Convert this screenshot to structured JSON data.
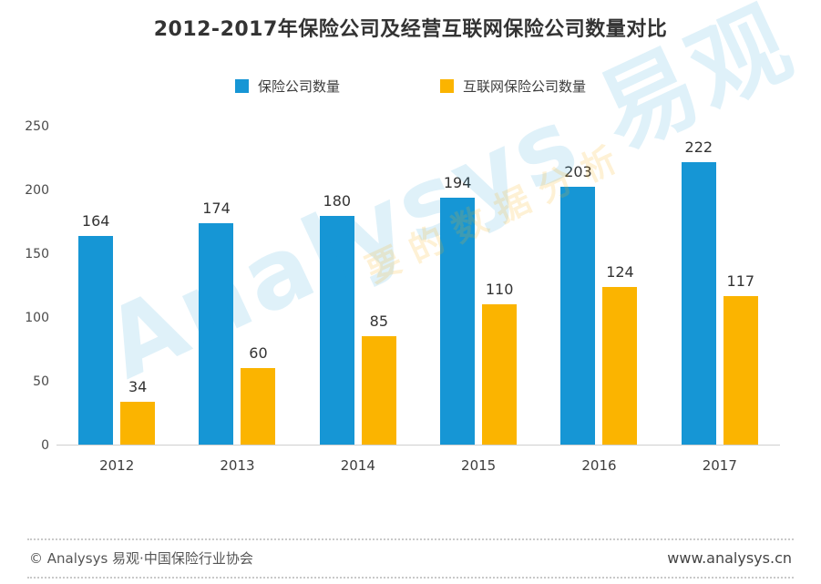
{
  "title": "2012-2017年保险公司及经营互联网保险公司数量对比",
  "legend": [
    {
      "label": "保险公司数量",
      "color": "#1696D5"
    },
    {
      "label": "互联网保险公司数量",
      "color": "#FBB400"
    }
  ],
  "chart_data": {
    "type": "bar",
    "title": "2012-2017年保险公司及经营互联网保险公司数量对比",
    "categories": [
      "2012",
      "2013",
      "2014",
      "2015",
      "2016",
      "2017"
    ],
    "series": [
      {
        "name": "保险公司数量",
        "color": "#1696D5",
        "values": [
          164,
          174,
          180,
          194,
          203,
          222
        ]
      },
      {
        "name": "互联网保险公司数量",
        "color": "#FBB400",
        "values": [
          34,
          60,
          85,
          110,
          124,
          117
        ]
      }
    ],
    "xlabel": "",
    "ylabel": "",
    "ylim": [
      0,
      250
    ],
    "yticks": [
      0,
      50,
      100,
      150,
      200,
      250
    ],
    "grid": false,
    "legend_position": "top",
    "value_labels": true
  },
  "watermark": {
    "text": "Analysys 易观",
    "sub_text": "要的数据分析",
    "color": "#1A9AD6"
  },
  "footer": {
    "left": "© Analysys 易观·中国保险行业协会",
    "right": "www.analysys.cn"
  }
}
